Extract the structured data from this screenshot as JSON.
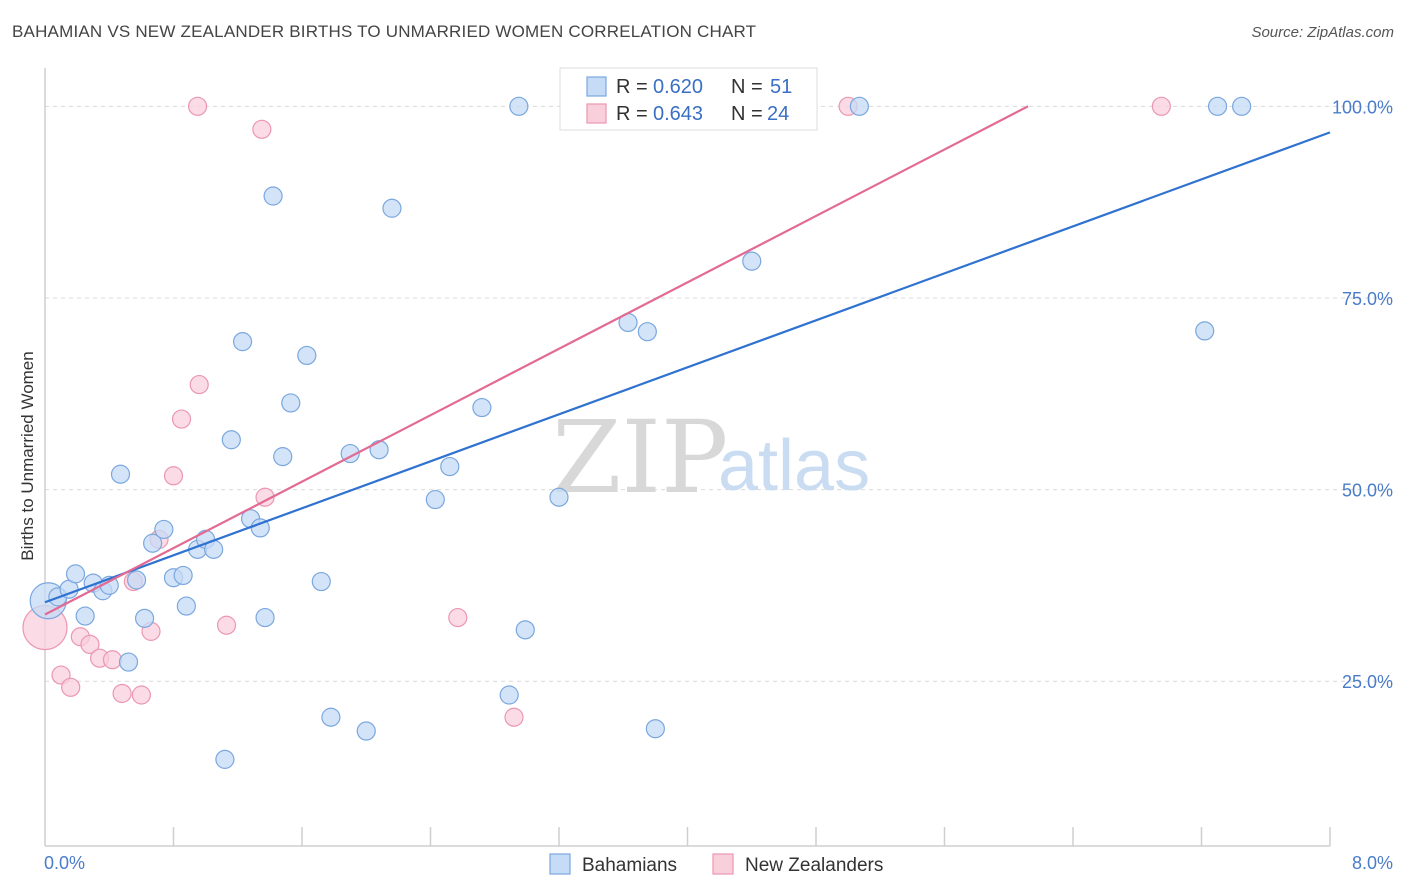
{
  "title": "BAHAMIAN VS NEW ZEALANDER BIRTHS TO UNMARRIED WOMEN CORRELATION CHART",
  "source": "Source: ZipAtlas.com",
  "watermark": {
    "zip": "ZIP",
    "atlas": "atlas"
  },
  "colors": {
    "blue_fill": "#c6dbf5",
    "blue_stroke": "#7aa7df",
    "blue_line": "#2f72d0",
    "pink_fill": "#f9cfdc",
    "pink_stroke": "#eb97b2",
    "pink_line": "#e26a93",
    "grid": "#d9d9d9"
  },
  "legend": {
    "rows": [
      {
        "r_label": "R =",
        "r_value": "0.620",
        "n_label": "N =",
        "n_value": "51"
      },
      {
        "r_label": "R =",
        "r_value": "0.643",
        "n_label": "N =",
        "n_value": "24"
      }
    ]
  },
  "chart_data": {
    "type": "scatter",
    "title": "BAHAMIAN VS NEW ZEALANDER BIRTHS TO UNMARRIED WOMEN CORRELATION CHART",
    "xlabel": "",
    "ylabel": "Births to Unmarried Women",
    "xlim": [
      0,
      8
    ],
    "ylim": [
      3.5,
      105
    ],
    "x_tick_labels": [
      "0.0%",
      "8.0%"
    ],
    "y_ticks": [
      25,
      50,
      75,
      100
    ],
    "y_tick_labels": [
      "25.0%",
      "50.0%",
      "75.0%",
      "100.0%"
    ],
    "grid": true,
    "legend_position": "bottom-center",
    "series": [
      {
        "name": "Bahamians",
        "r": 0.62,
        "n": 51,
        "trend": [
          [
            0.0,
            35.3
          ],
          [
            8.0,
            96.6
          ]
        ],
        "points": [
          [
            0.02,
            35.5,
            18
          ],
          [
            0.08,
            36.0,
            9
          ],
          [
            0.15,
            37.0,
            9
          ],
          [
            0.19,
            39.0,
            9
          ],
          [
            0.25,
            33.5,
            9
          ],
          [
            0.3,
            37.8,
            9
          ],
          [
            0.36,
            36.8,
            9
          ],
          [
            0.4,
            37.5,
            9
          ],
          [
            0.47,
            52.0,
            9
          ],
          [
            0.52,
            27.5,
            9
          ],
          [
            0.57,
            38.2,
            9
          ],
          [
            0.62,
            33.2,
            9
          ],
          [
            0.67,
            43.0,
            9
          ],
          [
            0.74,
            44.8,
            9
          ],
          [
            0.8,
            38.5,
            9
          ],
          [
            0.86,
            38.8,
            9
          ],
          [
            0.88,
            34.8,
            9
          ],
          [
            0.95,
            42.2,
            9
          ],
          [
            1.0,
            43.5,
            9
          ],
          [
            1.05,
            42.2,
            9
          ],
          [
            1.12,
            14.8,
            9
          ],
          [
            1.16,
            56.5,
            9
          ],
          [
            1.23,
            69.3,
            9
          ],
          [
            1.28,
            46.2,
            9
          ],
          [
            1.34,
            45.0,
            9
          ],
          [
            1.37,
            33.3,
            9
          ],
          [
            1.42,
            88.3,
            9
          ],
          [
            1.48,
            54.3,
            9
          ],
          [
            1.53,
            61.3,
            9
          ],
          [
            1.63,
            67.5,
            9
          ],
          [
            1.72,
            38.0,
            9
          ],
          [
            1.78,
            20.3,
            9
          ],
          [
            1.9,
            54.7,
            9
          ],
          [
            2.0,
            18.5,
            9
          ],
          [
            2.08,
            55.2,
            9
          ],
          [
            2.16,
            86.7,
            9
          ],
          [
            2.43,
            48.7,
            9
          ],
          [
            2.52,
            53.0,
            9
          ],
          [
            2.72,
            60.7,
            9
          ],
          [
            2.89,
            23.2,
            9
          ],
          [
            2.95,
            100.0,
            9
          ],
          [
            2.99,
            31.7,
            9
          ],
          [
            3.2,
            49.0,
            9
          ],
          [
            3.63,
            71.8,
            9
          ],
          [
            3.75,
            70.6,
            9
          ],
          [
            3.8,
            18.8,
            9
          ],
          [
            4.4,
            79.8,
            9
          ],
          [
            5.07,
            100.0,
            9
          ],
          [
            7.22,
            70.7,
            9
          ],
          [
            7.3,
            100.0,
            9
          ],
          [
            7.45,
            100.0,
            9
          ]
        ]
      },
      {
        "name": "New Zealanders",
        "r": 0.643,
        "n": 24,
        "trend": [
          [
            0.0,
            33.7
          ],
          [
            6.12,
            100.0
          ]
        ],
        "points": [
          [
            0.0,
            32.0,
            22
          ],
          [
            0.1,
            25.8,
            9
          ],
          [
            0.16,
            24.2,
            9
          ],
          [
            0.22,
            30.8,
            9
          ],
          [
            0.28,
            29.8,
            9
          ],
          [
            0.34,
            28.0,
            9
          ],
          [
            0.42,
            27.8,
            9
          ],
          [
            0.48,
            23.4,
            9
          ],
          [
            0.55,
            38.0,
            9
          ],
          [
            0.6,
            23.2,
            9
          ],
          [
            0.66,
            31.5,
            9
          ],
          [
            0.71,
            43.5,
            9
          ],
          [
            0.8,
            51.8,
            9
          ],
          [
            0.85,
            59.2,
            9
          ],
          [
            0.95,
            100.0,
            9
          ],
          [
            0.96,
            63.7,
            9
          ],
          [
            1.13,
            32.3,
            9
          ],
          [
            1.35,
            97.0,
            9
          ],
          [
            1.37,
            49.0,
            9
          ],
          [
            2.57,
            33.3,
            9
          ],
          [
            2.92,
            20.3,
            9
          ],
          [
            3.7,
            100.0,
            9
          ],
          [
            5.0,
            100.0,
            9
          ],
          [
            6.95,
            100.0,
            9
          ]
        ]
      }
    ]
  }
}
